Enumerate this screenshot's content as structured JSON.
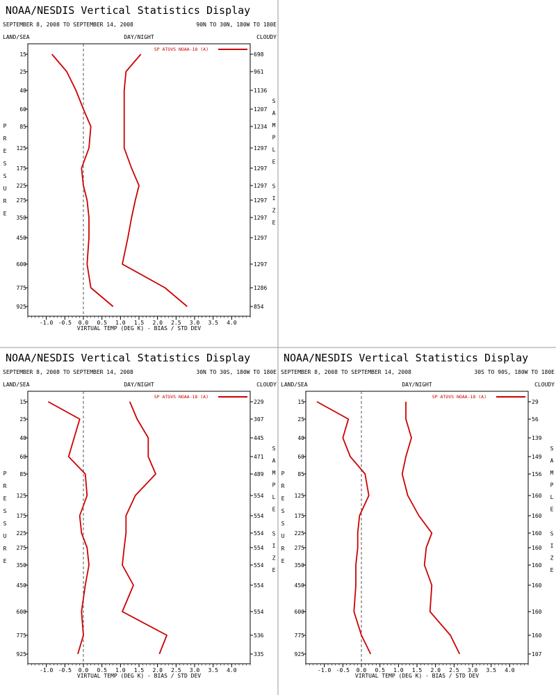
{
  "panels": [
    {
      "title": "NOAA/NESDIS Vertical Statistics Display",
      "date_range": "SEPTEMBER 8, 2008 TO SEPTEMBER 14, 2008",
      "region": "90N TO 30N, 180W TO 180E",
      "surface_label": "LAND/SEA",
      "time_label": "DAY/NIGHT",
      "sky_label": "CLOUDY",
      "left_axis_letters": [
        "P",
        "R",
        "E",
        "S",
        "S",
        "U",
        "R",
        "E"
      ],
      "right_axis_letters": [
        "S",
        "A",
        "M",
        "P",
        "L",
        "E",
        "",
        "S",
        "I",
        "Z",
        "E"
      ],
      "legend": "SP ATOVS NOAA-18 (A)",
      "xlabel": "VIRTUAL TEMP (DEG K) - BIAS / STD DEV",
      "sample_sizes": [
        "698",
        "961",
        "1136",
        "1207",
        "1234",
        "1297",
        "1297",
        "1297",
        "1297",
        "1297",
        "1297",
        "1297",
        "1286",
        "854"
      ]
    },
    {
      "title": "NOAA/NESDIS Vertical Statistics Display",
      "date_range": "SEPTEMBER 8, 2008 TO SEPTEMBER 14, 2008",
      "region": "30N TO 30S, 180W TO 180E",
      "surface_label": "LAND/SEA",
      "time_label": "DAY/NIGHT",
      "sky_label": "CLOUDY",
      "left_axis_letters": [
        "P",
        "R",
        "E",
        "S",
        "S",
        "U",
        "R",
        "E"
      ],
      "right_axis_letters": [
        "S",
        "A",
        "M",
        "P",
        "L",
        "E",
        "",
        "S",
        "I",
        "Z",
        "E"
      ],
      "legend": "SP ATOVS NOAA-18 (A)",
      "xlabel": "VIRTUAL TEMP (DEG K) - BIAS / STD DEV",
      "sample_sizes": [
        "229",
        "307",
        "445",
        "471",
        "489",
        "554",
        "554",
        "554",
        "554",
        "554",
        "554",
        "554",
        "536",
        "335"
      ]
    },
    {
      "title": "NOAA/NESDIS Vertical Statistics Display",
      "date_range": "SEPTEMBER 8, 2008 TO SEPTEMBER 14, 2008",
      "region": "30S TO 90S, 180W TO 180E",
      "surface_label": "LAND/SEA",
      "time_label": "DAY/NIGHT",
      "sky_label": "CLOUDY",
      "left_axis_letters": [
        "P",
        "R",
        "E",
        "S",
        "S",
        "U",
        "R",
        "E"
      ],
      "right_axis_letters": [
        "S",
        "A",
        "M",
        "P",
        "L",
        "E",
        "",
        "S",
        "I",
        "Z",
        "E"
      ],
      "legend": "SP ATOVS NOAA-18 (A)",
      "xlabel": "VIRTUAL TEMP (DEG K) - BIAS / STD DEV",
      "sample_sizes": [
        "29",
        "56",
        "139",
        "149",
        "156",
        "160",
        "160",
        "160",
        "160",
        "160",
        "160",
        "160",
        "160",
        "107"
      ]
    }
  ],
  "chart_data": [
    {
      "type": "line",
      "title": "NOAA/NESDIS Vertical Statistics Display",
      "xlabel": "VIRTUAL TEMP (DEG K) - BIAS / STD DEV",
      "ylabel": "PRESSURE",
      "x_ticks": [
        "-1.0",
        "-0.5",
        "0.0",
        "0.5",
        "1.0",
        "1.5",
        "2.0",
        "2.5",
        "3.0",
        "3.5",
        "4.0"
      ],
      "xlim": [
        -1.5,
        4.5
      ],
      "pressure_levels": [
        "15",
        "25",
        "40",
        "60",
        "85",
        "125",
        "175",
        "225",
        "275",
        "350",
        "450",
        "600",
        "775",
        "925"
      ],
      "series": [
        {
          "values": [
            -0.85,
            -0.45,
            -0.2,
            0.0,
            0.2,
            0.15,
            -0.05,
            0.0,
            0.1,
            0.15,
            0.15,
            0.1,
            0.2,
            0.8
          ]
        },
        {
          "values": [
            1.55,
            1.15,
            1.1,
            1.1,
            1.1,
            1.1,
            1.3,
            1.5,
            1.4,
            1.3,
            1.2,
            1.05,
            2.2,
            2.8
          ]
        }
      ],
      "color": "#cc0000"
    },
    {
      "type": "line",
      "title": "NOAA/NESDIS Vertical Statistics Display",
      "xlabel": "VIRTUAL TEMP (DEG K) - BIAS / STD DEV",
      "ylabel": "PRESSURE",
      "x_ticks": [
        "-1.0",
        "-0.5",
        "0.0",
        "0.5",
        "1.0",
        "1.5",
        "2.0",
        "2.5",
        "3.0",
        "3.5",
        "4.0"
      ],
      "xlim": [
        -1.5,
        4.5
      ],
      "pressure_levels": [
        "15",
        "25",
        "40",
        "60",
        "85",
        "125",
        "175",
        "225",
        "275",
        "350",
        "450",
        "600",
        "775",
        "925"
      ],
      "series": [
        {
          "values": [
            -0.95,
            -0.1,
            -0.25,
            -0.4,
            0.05,
            0.1,
            -0.1,
            -0.05,
            0.1,
            0.15,
            0.05,
            -0.05,
            0.0,
            -0.15
          ]
        },
        {
          "values": [
            1.25,
            1.45,
            1.75,
            1.75,
            1.95,
            1.4,
            1.15,
            1.15,
            1.1,
            1.05,
            1.35,
            1.05,
            2.25,
            2.05
          ]
        }
      ],
      "color": "#cc0000"
    },
    {
      "type": "line",
      "title": "NOAA/NESDIS Vertical Statistics Display",
      "xlabel": "VIRTUAL TEMP (DEG K) - BIAS / STD DEV",
      "ylabel": "PRESSURE",
      "x_ticks": [
        "-1.0",
        "-0.5",
        "0.0",
        "0.5",
        "1.0",
        "1.5",
        "2.0",
        "2.5",
        "3.0",
        "3.5",
        "4.0"
      ],
      "xlim": [
        -1.5,
        4.5
      ],
      "pressure_levels": [
        "15",
        "25",
        "40",
        "60",
        "85",
        "125",
        "175",
        "225",
        "275",
        "350",
        "450",
        "600",
        "775",
        "925"
      ],
      "series": [
        {
          "values": [
            -1.2,
            -0.35,
            -0.5,
            -0.3,
            0.1,
            0.2,
            -0.05,
            -0.1,
            -0.1,
            -0.15,
            -0.15,
            -0.2,
            0.0,
            0.25
          ]
        },
        {
          "values": [
            1.2,
            1.2,
            1.35,
            1.2,
            1.1,
            1.25,
            1.55,
            1.9,
            1.75,
            1.7,
            1.9,
            1.85,
            2.4,
            2.65
          ]
        }
      ],
      "color": "#cc0000"
    }
  ]
}
